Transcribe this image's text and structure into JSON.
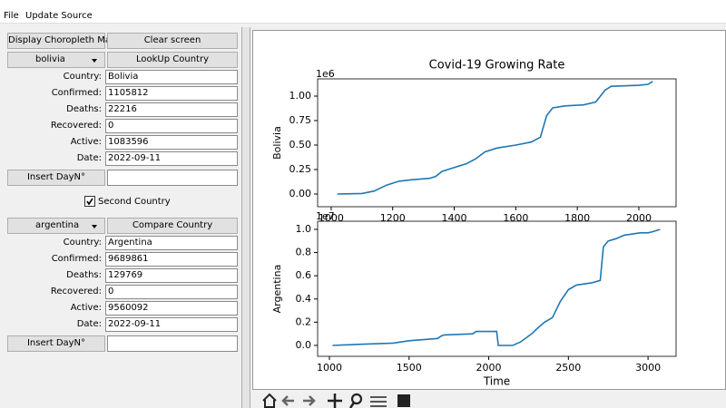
{
  "menu": [
    "File",
    "Update Source"
  ],
  "buttons": {
    "choropleth": "Display Choropleth Map",
    "clear": "Clear screen"
  },
  "first": {
    "select": "bolivia",
    "action": "LookUp Country",
    "fields": [
      {
        "label": "Country:",
        "value": "Bolivia"
      },
      {
        "label": "Confirmed:",
        "value": "1105812"
      },
      {
        "label": "Deaths:",
        "value": "22216"
      },
      {
        "label": "Recovered:",
        "value": "0"
      },
      {
        "label": "Active:",
        "value": "1083596"
      },
      {
        "label": "Date:",
        "value": "2022-09-11"
      }
    ],
    "insert": "Insert DayN°"
  },
  "second_toggle": "Second Country",
  "second": {
    "select": "argentina",
    "action": "Compare Country",
    "fields": [
      {
        "label": "Country:",
        "value": "Argentina"
      },
      {
        "label": "Confirmed:",
        "value": "9689861"
      },
      {
        "label": "Deaths:",
        "value": "129769"
      },
      {
        "label": "Recovered:",
        "value": "0"
      },
      {
        "label": "Active:",
        "value": "9560092"
      },
      {
        "label": "Date:",
        "value": "2022-09-11"
      }
    ],
    "insert": "Insert DayN°"
  },
  "chart_data": [
    {
      "type": "line",
      "title": "Covid-19 Growing Rate",
      "ylabel": "Bolivia",
      "offset_label": "1e6",
      "color": "#1f77b4",
      "x": [
        1020,
        1100,
        1140,
        1180,
        1220,
        1260,
        1320,
        1340,
        1360,
        1400,
        1440,
        1470,
        1500,
        1540,
        1600,
        1650,
        1680,
        1700,
        1720,
        1760,
        1820,
        1860,
        1890,
        1910,
        2000,
        2030,
        2045
      ],
      "values": [
        0,
        0.005,
        0.03,
        0.09,
        0.13,
        0.145,
        0.16,
        0.18,
        0.23,
        0.27,
        0.31,
        0.36,
        0.43,
        0.47,
        0.5,
        0.53,
        0.58,
        0.8,
        0.88,
        0.9,
        0.91,
        0.94,
        1.06,
        1.1,
        1.11,
        1.12,
        1.15
      ],
      "xlim": [
        956,
        2121
      ],
      "ylim": [
        -0.13,
        1.176
      ],
      "xticks": [
        1000,
        1200,
        1400,
        1600,
        1800,
        2000
      ],
      "yticks": [
        {
          "value": 0,
          "label": "0.00"
        },
        {
          "value": 0.25,
          "label": "0.25"
        },
        {
          "value": 0.5,
          "label": "0.50"
        },
        {
          "value": 0.75,
          "label": "0.75"
        },
        {
          "value": 1,
          "label": "1.00"
        }
      ]
    },
    {
      "type": "line",
      "ylabel": "Argentina",
      "xlabel": "Time",
      "offset_label": "1e7",
      "color": "#1f77b4",
      "x": [
        1020,
        1200,
        1400,
        1500,
        1680,
        1700,
        1720,
        1900,
        1920,
        2050,
        2060,
        2150,
        2200,
        2270,
        2300,
        2350,
        2400,
        2450,
        2500,
        2550,
        2650,
        2700,
        2720,
        2750,
        2800,
        2850,
        2950,
        3000,
        3030,
        3075
      ],
      "values": [
        0,
        0.01,
        0.02,
        0.04,
        0.06,
        0.08,
        0.09,
        0.1,
        0.12,
        0.12,
        0,
        0,
        0.03,
        0.1,
        0.14,
        0.2,
        0.24,
        0.38,
        0.48,
        0.52,
        0.54,
        0.56,
        0.85,
        0.9,
        0.92,
        0.95,
        0.97,
        0.97,
        0.98,
        1.0
      ],
      "xlim": [
        926,
        3176
      ],
      "ylim": [
        -0.094,
        1.07
      ],
      "xticks": [
        1000,
        1500,
        2000,
        2500,
        3000
      ],
      "yticks": [
        {
          "value": 0,
          "label": "0.0"
        },
        {
          "value": 0.2,
          "label": "0.2"
        },
        {
          "value": 0.4,
          "label": "0.4"
        },
        {
          "value": 0.6,
          "label": "0.6"
        },
        {
          "value": 0.8,
          "label": "0.8"
        },
        {
          "value": 1,
          "label": "1.0"
        }
      ]
    }
  ]
}
